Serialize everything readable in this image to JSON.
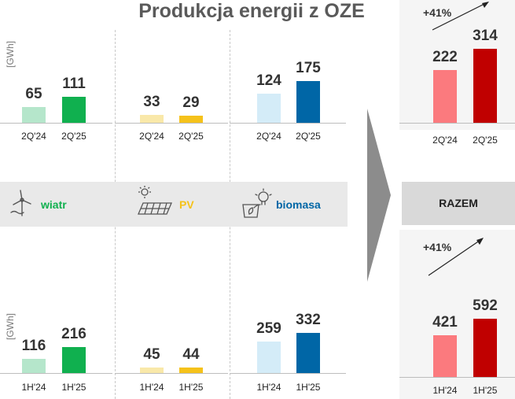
{
  "title": "Produkcja energii z OZE",
  "unit": "[GWh]",
  "band": {
    "wind_label": "wiatr",
    "pv_label": "PV",
    "bio_label": "biomasa",
    "total_label": "RAZEM"
  },
  "colors": {
    "wind_prev": "#b5e6cb",
    "wind_cur": "#10b04f",
    "pv_prev": "#f9e8a9",
    "pv_cur": "#f5c21b",
    "bio_prev": "#d4ecf8",
    "bio_cur": "#0066a6",
    "total_prev": "#fb7a7e",
    "total_cur": "#c00000"
  },
  "chart_data": [
    {
      "type": "bar",
      "title": "wiatr",
      "categories": [
        "2Q'24",
        "2Q'25"
      ],
      "values": [
        65,
        111
      ],
      "ylabel": "[GWh]"
    },
    {
      "type": "bar",
      "title": "PV",
      "categories": [
        "2Q'24",
        "2Q'25"
      ],
      "values": [
        33,
        29
      ]
    },
    {
      "type": "bar",
      "title": "biomasa",
      "categories": [
        "2Q'24",
        "2Q'25"
      ],
      "values": [
        124,
        175
      ]
    },
    {
      "type": "bar",
      "title": "RAZEM",
      "categories": [
        "2Q'24",
        "2Q'25"
      ],
      "values": [
        222,
        314
      ],
      "annotation": "+41%"
    },
    {
      "type": "bar",
      "title": "wiatr",
      "categories": [
        "1H'24",
        "1H'25"
      ],
      "values": [
        116,
        216
      ],
      "ylabel": "[GWh]"
    },
    {
      "type": "bar",
      "title": "PV",
      "categories": [
        "1H'24",
        "1H'25"
      ],
      "values": [
        45,
        44
      ]
    },
    {
      "type": "bar",
      "title": "biomasa",
      "categories": [
        "1H'24",
        "1H'25"
      ],
      "values": [
        259,
        332
      ]
    },
    {
      "type": "bar",
      "title": "RAZEM",
      "categories": [
        "1H'24",
        "1H'25"
      ],
      "values": [
        421,
        592
      ],
      "annotation": "+41%"
    }
  ]
}
